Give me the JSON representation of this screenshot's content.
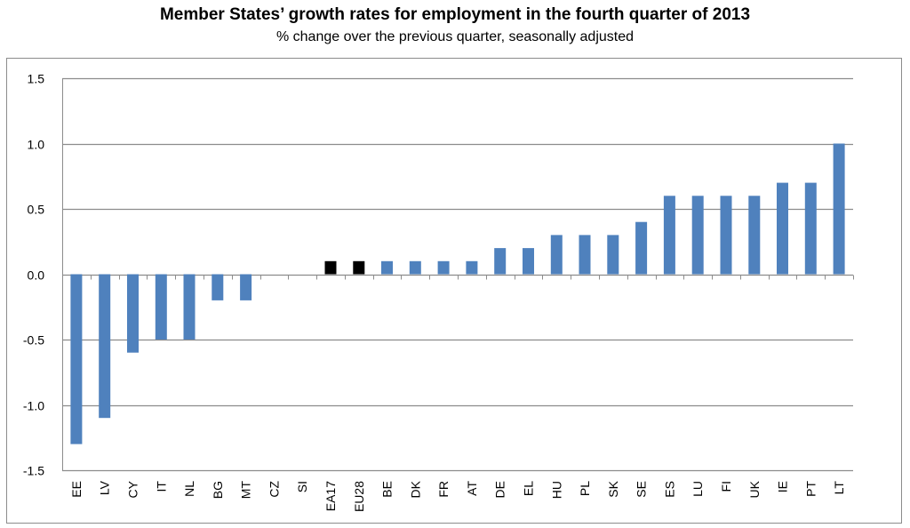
{
  "chart_data": {
    "type": "bar",
    "title": "Member States’ growth rates for employment in the fourth quarter of 2013",
    "subtitle": "% change over the previous quarter, seasonally adjusted",
    "categories": [
      "EE",
      "LV",
      "CY",
      "IT",
      "NL",
      "BG",
      "MT",
      "CZ",
      "SI",
      "EA17",
      "EU28",
      "BE",
      "DK",
      "FR",
      "AT",
      "DE",
      "EL",
      "HU",
      "PL",
      "SK",
      "SE",
      "ES",
      "LU",
      "FI",
      "UK",
      "IE",
      "PT",
      "LT"
    ],
    "values": [
      -1.3,
      -1.1,
      -0.6,
      -0.5,
      -0.5,
      -0.2,
      -0.2,
      0.0,
      0.0,
      0.1,
      0.1,
      0.1,
      0.1,
      0.1,
      0.1,
      0.2,
      0.2,
      0.3,
      0.3,
      0.3,
      0.4,
      0.6,
      0.6,
      0.6,
      0.6,
      0.7,
      0.7,
      1.0
    ],
    "highlight": [
      "EA17",
      "EU28"
    ],
    "ylim": [
      -1.5,
      1.5
    ],
    "yticks": [
      -1.5,
      -1.0,
      -0.5,
      0.0,
      0.5,
      1.0,
      1.5
    ],
    "ytick_labels": [
      "-1.5",
      "-1.0",
      "-0.5",
      "0.0",
      "0.5",
      "1.0",
      "1.5"
    ],
    "grid": true,
    "colors": {
      "bar": "#4f81bd",
      "highlight": "#000000",
      "grid": "#8c8c8c"
    }
  }
}
